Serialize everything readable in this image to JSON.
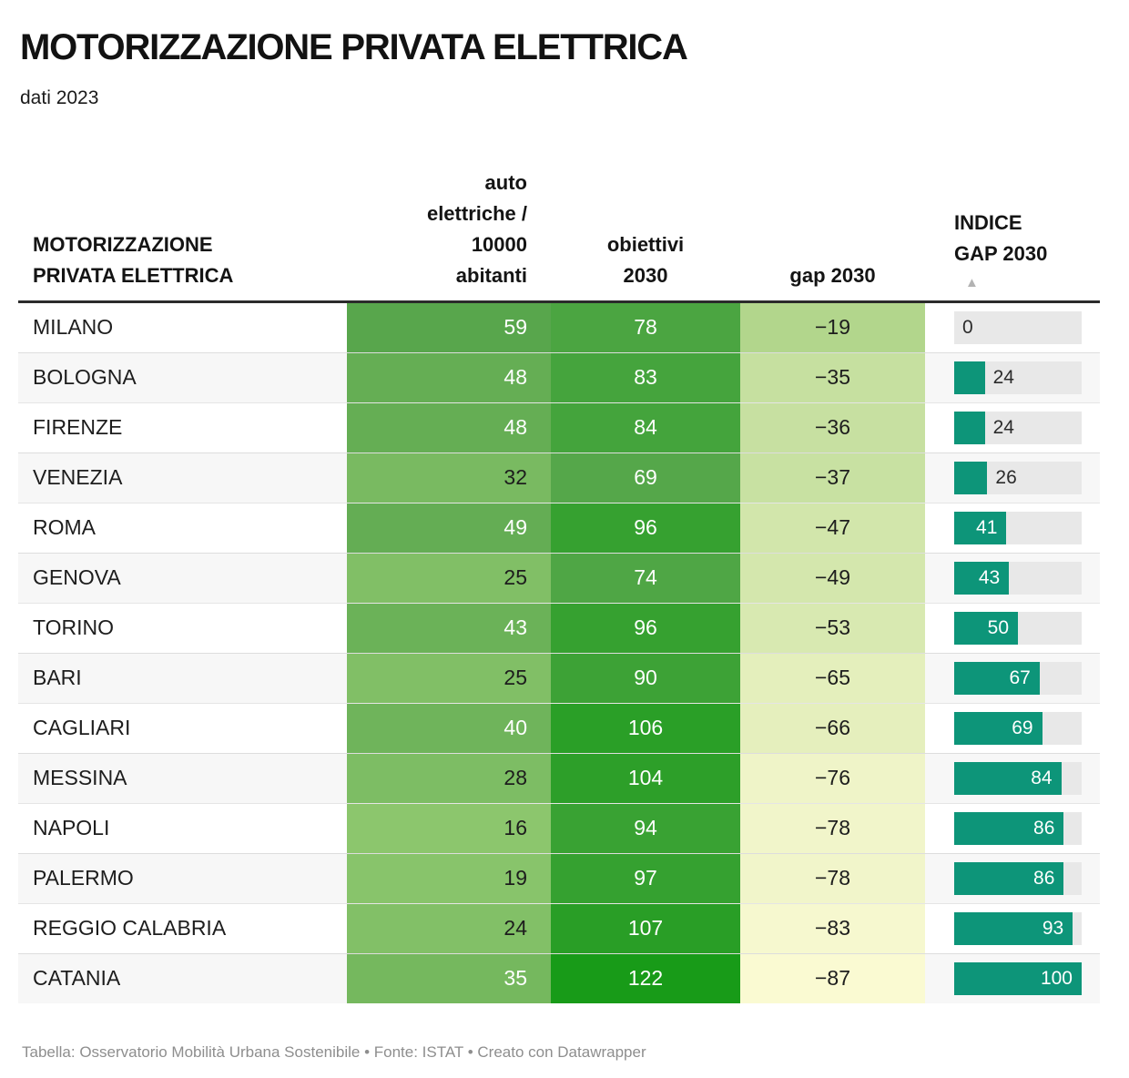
{
  "header": {
    "title": "MOTORIZZAZIONE PRIVATA ELETTRICA",
    "subtitle": "dati 2023"
  },
  "chart_data": {
    "type": "table",
    "title": "MOTORIZZAZIONE PRIVATA ELETTRICA",
    "subtitle": "dati 2023",
    "columns": [
      {
        "key": "city",
        "label": "MOTORIZZAZIONE PRIVATA ELETTRICA",
        "label_lines": [
          "MOTORIZZAZIONE",
          "PRIVATA ELETTRICA"
        ],
        "align": "left"
      },
      {
        "key": "auto",
        "label": "auto elettriche / 10000 abitanti",
        "label_lines": [
          "auto",
          "elettriche /",
          "10000",
          "abitanti"
        ],
        "align": "right"
      },
      {
        "key": "obiettivi",
        "label": "obiettivi 2030",
        "label_lines": [
          "obiettivi",
          "2030"
        ],
        "align": "center"
      },
      {
        "key": "gap",
        "label": "gap 2030",
        "label_lines": [
          "gap 2030"
        ],
        "align": "center"
      },
      {
        "key": "indice",
        "label": "INDICE GAP 2030",
        "label_lines": [
          "INDICE",
          "GAP 2030"
        ],
        "align": "left",
        "sort_icon": "▲"
      }
    ],
    "sort_indicator": {
      "column": "indice",
      "direction": "ascending",
      "icon": "▲"
    },
    "bar_axis": {
      "min": 0,
      "max": 100
    },
    "rows": [
      {
        "city": "MILANO",
        "auto": 59,
        "obiettivi": 78,
        "gap": -19,
        "gap_label": "−19",
        "indice": 0,
        "auto_text_light": true,
        "colors": {
          "auto": "#58a64c",
          "obiettivi": "#4ba541",
          "gap": "#b2d68c"
        }
      },
      {
        "city": "BOLOGNA",
        "auto": 48,
        "obiettivi": 83,
        "gap": -35,
        "gap_label": "−35",
        "indice": 24,
        "auto_text_light": true,
        "colors": {
          "auto": "#65ae54",
          "obiettivi": "#45a43d",
          "gap": "#c6e0a0"
        }
      },
      {
        "city": "FIRENZE",
        "auto": 48,
        "obiettivi": 84,
        "gap": -36,
        "gap_label": "−36",
        "indice": 24,
        "auto_text_light": true,
        "colors": {
          "auto": "#65ae54",
          "obiettivi": "#44a43c",
          "gap": "#c7e0a1"
        }
      },
      {
        "city": "VENEZIA",
        "auto": 32,
        "obiettivi": 69,
        "gap": -37,
        "gap_label": "−37",
        "indice": 26,
        "auto_text_light": false,
        "colors": {
          "auto": "#79ba61",
          "obiettivi": "#55a74a",
          "gap": "#c8e1a2"
        }
      },
      {
        "city": "ROMA",
        "auto": 49,
        "obiettivi": 96,
        "gap": -47,
        "gap_label": "−47",
        "indice": 41,
        "auto_text_light": true,
        "colors": {
          "auto": "#64ad54",
          "obiettivi": "#36a130",
          "gap": "#d2e6ab"
        }
      },
      {
        "city": "GENOVA",
        "auto": 25,
        "obiettivi": 74,
        "gap": -49,
        "gap_label": "−49",
        "indice": 43,
        "auto_text_light": false,
        "colors": {
          "auto": "#81bf66",
          "obiettivi": "#4fa645",
          "gap": "#d4e7ad"
        }
      },
      {
        "city": "TORINO",
        "auto": 43,
        "obiettivi": 96,
        "gap": -53,
        "gap_label": "−53",
        "indice": 50,
        "auto_text_light": true,
        "colors": {
          "auto": "#6bb258",
          "obiettivi": "#36a130",
          "gap": "#d8e9b1"
        }
      },
      {
        "city": "BARI",
        "auto": 25,
        "obiettivi": 90,
        "gap": -65,
        "gap_label": "−65",
        "indice": 67,
        "auto_text_light": false,
        "colors": {
          "auto": "#81bf66",
          "obiettivi": "#3da236",
          "gap": "#e4efbc"
        }
      },
      {
        "city": "CAGLIARI",
        "auto": 40,
        "obiettivi": 106,
        "gap": -66,
        "gap_label": "−66",
        "indice": 69,
        "auto_text_light": true,
        "colors": {
          "auto": "#6fb45b",
          "obiettivi": "#2a9f27",
          "gap": "#e5efbd"
        }
      },
      {
        "city": "MESSINA",
        "auto": 28,
        "obiettivi": 104,
        "gap": -76,
        "gap_label": "−76",
        "indice": 84,
        "auto_text_light": false,
        "colors": {
          "auto": "#7dbd64",
          "obiettivi": "#2d9f29",
          "gap": "#eff4c8"
        }
      },
      {
        "city": "NAPOLI",
        "auto": 16,
        "obiettivi": 94,
        "gap": -78,
        "gap_label": "−78",
        "indice": 86,
        "auto_text_light": false,
        "colors": {
          "auto": "#8cc66d",
          "obiettivi": "#39a233",
          "gap": "#f1f5ca"
        }
      },
      {
        "city": "PALERMO",
        "auto": 19,
        "obiettivi": 97,
        "gap": -78,
        "gap_label": "−78",
        "indice": 86,
        "auto_text_light": false,
        "colors": {
          "auto": "#88c46b",
          "obiettivi": "#35a130",
          "gap": "#f1f5ca"
        }
      },
      {
        "city": "REGGIO CALABRIA",
        "auto": 24,
        "obiettivi": 107,
        "gap": -83,
        "gap_label": "−83",
        "indice": 93,
        "auto_text_light": false,
        "colors": {
          "auto": "#82c067",
          "obiettivi": "#299e26",
          "gap": "#f6f8cf"
        }
      },
      {
        "city": "CATANIA",
        "auto": 35,
        "obiettivi": 122,
        "gap": -87,
        "gap_label": "−87",
        "indice": 100,
        "auto_text_light": true,
        "colors": {
          "auto": "#75b85e",
          "obiettivi": "#189b18",
          "gap": "#fafad2"
        }
      }
    ]
  },
  "styles": {
    "bar_color": "#0d9579",
    "bar_track_color": "#e8e8e8",
    "row_stripe_color": "#f7f7f7",
    "header_rule_color": "#2b2b2b",
    "sort_icon_color": "#b3b3b3",
    "dark_text": "#1d1d1d",
    "light_text": "#ffffff"
  },
  "footer": {
    "text": "Tabella: Osservatorio Mobilità Urbana Sostenibile • Fonte: ISTAT • Creato con Datawrapper"
  }
}
